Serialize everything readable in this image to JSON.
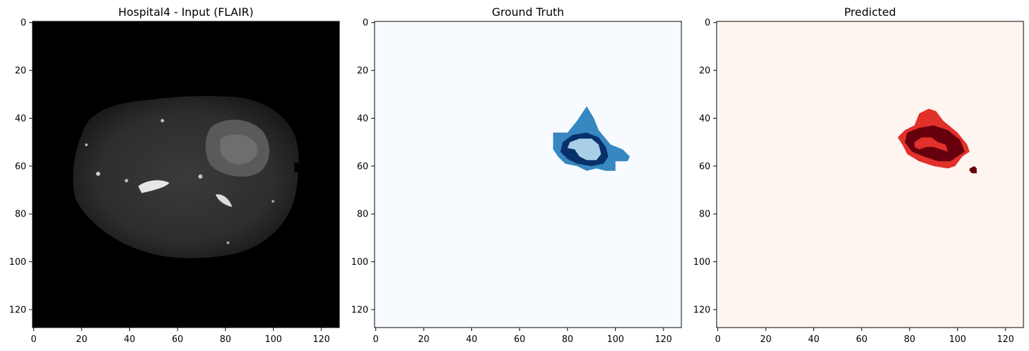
{
  "colors": {
    "flair_background": "#000000",
    "gt_background": "#f7fbff",
    "gt_edema": "#3787c0",
    "gt_enhancing": "#08306b",
    "gt_core": "#a8cfe5",
    "pred_background": "#fff5f0",
    "pred_edema": "#e2302a",
    "pred_core": "#67000d"
  },
  "chart_data": [
    {
      "type": "heatmap",
      "title": "Hospital4 - Input (FLAIR)",
      "xlabel": "",
      "ylabel": "",
      "xlim": [
        -0.5,
        127.5
      ],
      "ylim": [
        127.5,
        -0.5
      ],
      "xticks": [
        0,
        20,
        40,
        60,
        80,
        100,
        120
      ],
      "yticks": [
        0,
        20,
        40,
        60,
        80,
        100,
        120
      ],
      "grid": false,
      "content": "grayscale brain MRI slice"
    },
    {
      "type": "heatmap",
      "title": "Ground Truth",
      "xlabel": "",
      "ylabel": "",
      "xlim": [
        -0.5,
        127.5
      ],
      "ylim": [
        127.5,
        -0.5
      ],
      "xticks": [
        0,
        20,
        40,
        60,
        80,
        100,
        120
      ],
      "yticks": [
        0,
        20,
        40,
        60,
        80,
        100,
        120
      ],
      "grid": false,
      "regions": [
        {
          "label": 1,
          "color": "#3787c0",
          "polygon": [
            [
              88,
              35
            ],
            [
              91,
              40
            ],
            [
              93,
              45
            ],
            [
              98,
              51
            ],
            [
              103,
              53
            ],
            [
              106,
              56
            ],
            [
              105,
              58
            ],
            [
              100,
              58
            ],
            [
              100,
              62
            ],
            [
              96,
              62
            ],
            [
              92,
              61
            ],
            [
              88,
              62
            ],
            [
              84,
              60
            ],
            [
              79,
              59
            ],
            [
              76,
              56
            ],
            [
              74,
              53
            ],
            [
              74,
              46
            ],
            [
              80,
              46
            ],
            [
              84,
              41
            ]
          ]
        },
        {
          "label": 2,
          "color": "#08306b",
          "polygon": [
            [
              78,
              50
            ],
            [
              82,
              47
            ],
            [
              88,
              46
            ],
            [
              93,
              48
            ],
            [
              96,
              52
            ],
            [
              97,
              56
            ],
            [
              95,
              59
            ],
            [
              90,
              60
            ],
            [
              84,
              59
            ],
            [
              80,
              57
            ],
            [
              77,
              54
            ]
          ]
        },
        {
          "label": 3,
          "color": "#a8cfe5",
          "polygon": [
            [
              81,
              50
            ],
            [
              85,
              48.5
            ],
            [
              90,
              48.5
            ],
            [
              93,
              51
            ],
            [
              94,
              55
            ],
            [
              92,
              57.5
            ],
            [
              88,
              57.5
            ],
            [
              85,
              56
            ],
            [
              83,
              53
            ],
            [
              80,
              52.5
            ]
          ]
        }
      ]
    },
    {
      "type": "heatmap",
      "title": "Predicted",
      "xlabel": "",
      "ylabel": "",
      "xlim": [
        -0.5,
        127.5
      ],
      "ylim": [
        127.5,
        -0.5
      ],
      "xticks": [
        0,
        20,
        40,
        60,
        80,
        100,
        120
      ],
      "yticks": [
        0,
        20,
        40,
        60,
        80,
        100,
        120
      ],
      "grid": false,
      "regions": [
        {
          "label": 1,
          "color": "#e2302a",
          "polygon": [
            [
              84,
              38
            ],
            [
              88,
              36
            ],
            [
              91,
              37
            ],
            [
              94,
              41
            ],
            [
              100,
              46
            ],
            [
              104,
              51
            ],
            [
              105,
              54
            ],
            [
              102,
              56
            ],
            [
              99,
              60
            ],
            [
              96,
              61
            ],
            [
              90,
              60
            ],
            [
              84,
              58
            ],
            [
              79,
              55
            ],
            [
              77,
              51
            ],
            [
              75,
              48
            ],
            [
              78,
              45
            ],
            [
              82,
              43
            ]
          ]
        },
        {
          "label": 2,
          "color": "#67000d",
          "polygon": [
            [
              79,
              46
            ],
            [
              84,
              44
            ],
            [
              90,
              43
            ],
            [
              96,
              45
            ],
            [
              101,
              49
            ],
            [
              103,
              54
            ],
            [
              100,
              56
            ],
            [
              97,
              58
            ],
            [
              92,
              58
            ],
            [
              86,
              56
            ],
            [
              81,
              54
            ],
            [
              78,
              50
            ]
          ]
        },
        {
          "label": 3,
          "color": "#e2302a",
          "polygon": [
            [
              82,
              50
            ],
            [
              85,
              48
            ],
            [
              89,
              48
            ],
            [
              92,
              50
            ],
            [
              95,
              51
            ],
            [
              96,
              54
            ],
            [
              93,
              53
            ],
            [
              90,
              52
            ],
            [
              87,
              52
            ],
            [
              84,
              53
            ],
            [
              82,
              52
            ]
          ]
        },
        {
          "label": 2,
          "color": "#67000d",
          "polygon": [
            [
              105,
              61
            ],
            [
              107,
              60
            ],
            [
              108,
              61
            ],
            [
              108,
              63
            ],
            [
              106,
              63
            ],
            [
              105,
              62
            ]
          ]
        }
      ]
    }
  ]
}
